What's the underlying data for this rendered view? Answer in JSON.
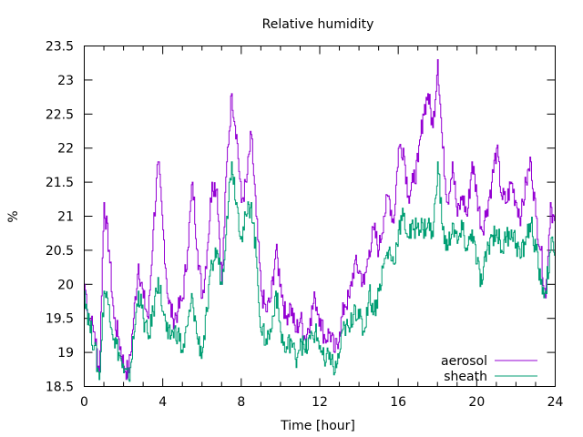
{
  "chart_data": {
    "type": "line",
    "title": "Relative humidity",
    "xlabel": "Time [hour]",
    "ylabel": "%",
    "xlim": [
      0,
      24
    ],
    "ylim": [
      18.5,
      23.5
    ],
    "xticks": [
      0,
      4,
      8,
      12,
      16,
      20,
      24
    ],
    "xtick_labels": [
      "0",
      "4",
      "8",
      "12",
      "16",
      "20",
      "24"
    ],
    "yticks": [
      18.5,
      19,
      19.5,
      20,
      20.5,
      21,
      21.5,
      22,
      22.5,
      23,
      23.5
    ],
    "ytick_labels": [
      "18.5",
      "19",
      "19.5",
      "20",
      "20.5",
      "21",
      "21.5",
      "22",
      "22.5",
      "23",
      "23.5"
    ],
    "grid": false,
    "legend_position": "bottom-right",
    "x": [
      0,
      0.25,
      0.5,
      0.75,
      1,
      1.25,
      1.5,
      1.75,
      2,
      2.25,
      2.5,
      2.75,
      3,
      3.25,
      3.5,
      3.75,
      4,
      4.25,
      4.5,
      4.75,
      5,
      5.25,
      5.5,
      5.75,
      6,
      6.25,
      6.5,
      6.75,
      7,
      7.25,
      7.5,
      7.75,
      8,
      8.25,
      8.5,
      8.75,
      9,
      9.25,
      9.5,
      9.75,
      10,
      10.25,
      10.5,
      10.75,
      11,
      11.25,
      11.5,
      11.75,
      12,
      12.25,
      12.5,
      12.75,
      13,
      13.25,
      13.5,
      13.75,
      14,
      14.25,
      14.5,
      14.75,
      15,
      15.25,
      15.5,
      15.75,
      16,
      16.25,
      16.5,
      16.75,
      17,
      17.25,
      17.5,
      17.75,
      18,
      18.25,
      18.5,
      18.75,
      19,
      19.25,
      19.5,
      19.75,
      20,
      20.25,
      20.5,
      20.75,
      21,
      21.25,
      21.5,
      21.75,
      22,
      22.25,
      22.5,
      22.75,
      23,
      23.25,
      23.5,
      23.75,
      24
    ],
    "series": [
      {
        "name": "aerosol",
        "color": "#9400d3",
        "values": [
          20.0,
          19.5,
          19.3,
          18.7,
          21.2,
          20.5,
          19.5,
          19.2,
          18.8,
          18.7,
          19.5,
          20.3,
          19.8,
          19.5,
          20.8,
          21.8,
          20.8,
          19.8,
          19.5,
          19.6,
          19.8,
          20.5,
          21.5,
          20.5,
          19.8,
          20.5,
          21.5,
          21.4,
          20.0,
          21.8,
          22.8,
          22.2,
          21.2,
          21.5,
          22.2,
          21.0,
          19.9,
          19.6,
          19.8,
          20.5,
          20.0,
          19.5,
          19.7,
          19.3,
          19.5,
          19.2,
          19.5,
          19.8,
          19.5,
          19.2,
          19.3,
          19.0,
          19.3,
          19.7,
          19.8,
          20.3,
          20.2,
          20.0,
          20.5,
          20.8,
          20.5,
          21.0,
          21.3,
          20.9,
          22.0,
          22.0,
          21.3,
          21.5,
          21.8,
          22.5,
          22.8,
          22.3,
          23.3,
          22.0,
          21.2,
          21.8,
          21.0,
          21.3,
          21.0,
          21.8,
          21.3,
          20.8,
          21.1,
          21.5,
          22.0,
          21.3,
          21.2,
          21.5,
          21.2,
          21.0,
          21.5,
          21.8,
          21.0,
          20.5,
          19.8,
          21.2,
          20.8
        ]
      },
      {
        "name": "sheath",
        "color": "#009e73",
        "values": [
          19.9,
          19.4,
          19.1,
          18.6,
          19.9,
          19.7,
          19.2,
          19.0,
          18.7,
          18.6,
          19.2,
          19.9,
          19.5,
          19.2,
          19.6,
          20.1,
          19.6,
          19.2,
          19.3,
          19.3,
          19.0,
          19.4,
          19.8,
          19.2,
          19.0,
          19.6,
          20.3,
          20.5,
          20.0,
          21.0,
          21.8,
          21.2,
          20.7,
          21.0,
          21.2,
          20.4,
          19.3,
          19.2,
          19.3,
          19.9,
          19.3,
          19.0,
          19.2,
          18.9,
          19.2,
          19.0,
          19.2,
          19.3,
          19.1,
          18.8,
          19.0,
          18.7,
          19.0,
          19.4,
          19.3,
          19.7,
          19.5,
          19.3,
          19.9,
          19.6,
          19.9,
          20.3,
          20.5,
          20.3,
          20.8,
          21.0,
          20.7,
          20.8,
          20.9,
          20.8,
          20.9,
          20.7,
          21.8,
          20.8,
          20.5,
          20.9,
          20.6,
          20.8,
          20.5,
          20.8,
          20.3,
          20.0,
          20.5,
          20.7,
          20.8,
          20.5,
          20.7,
          20.8,
          20.6,
          20.4,
          20.7,
          20.9,
          20.5,
          20.0,
          19.9,
          20.5,
          20.6
        ]
      }
    ]
  }
}
